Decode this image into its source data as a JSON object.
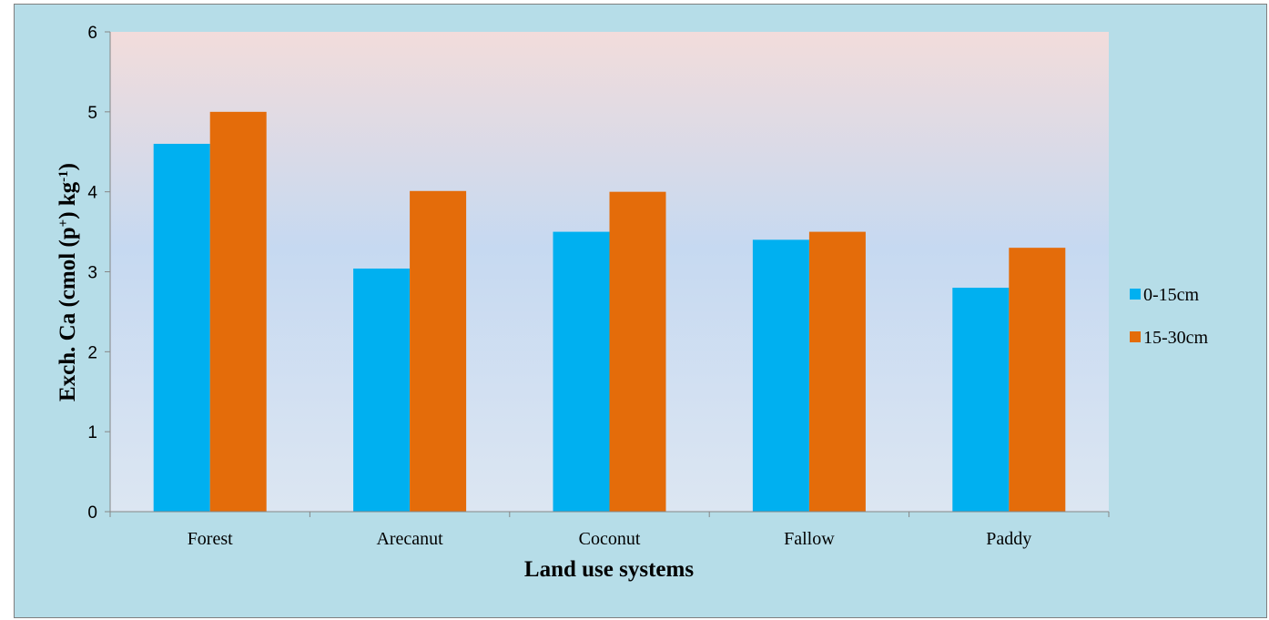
{
  "chart_data": {
    "type": "bar",
    "title": "",
    "xlabel": "Land use systems",
    "ylabel": {
      "prefix": "Exch. Ca  (cmol (p",
      "sup1": "+",
      "middle": ") kg",
      "sup2": "-1",
      "suffix": ")"
    },
    "categories": [
      "Forest",
      "Arecanut",
      "Coconut",
      "Fallow",
      "Paddy"
    ],
    "series": [
      {
        "name": "0-15cm",
        "color": "#00b0f0",
        "values": [
          4.6,
          3.04,
          3.5,
          3.4,
          2.8
        ]
      },
      {
        "name": "15-30cm",
        "color": "#e46c0a",
        "values": [
          5.0,
          4.01,
          4.0,
          3.5,
          3.3
        ]
      }
    ],
    "ylim": [
      0,
      6
    ],
    "yticks": [
      "0",
      "1",
      "2",
      "3",
      "4",
      "5",
      "6"
    ],
    "grid": false,
    "legend_position": "right"
  },
  "colors": {
    "outer_background": "#b6dde8",
    "plot_gradient_top": "#f2dcdb",
    "plot_gradient_mid": "#c6d9f1",
    "plot_gradient_bottom": "#dce6f2"
  }
}
